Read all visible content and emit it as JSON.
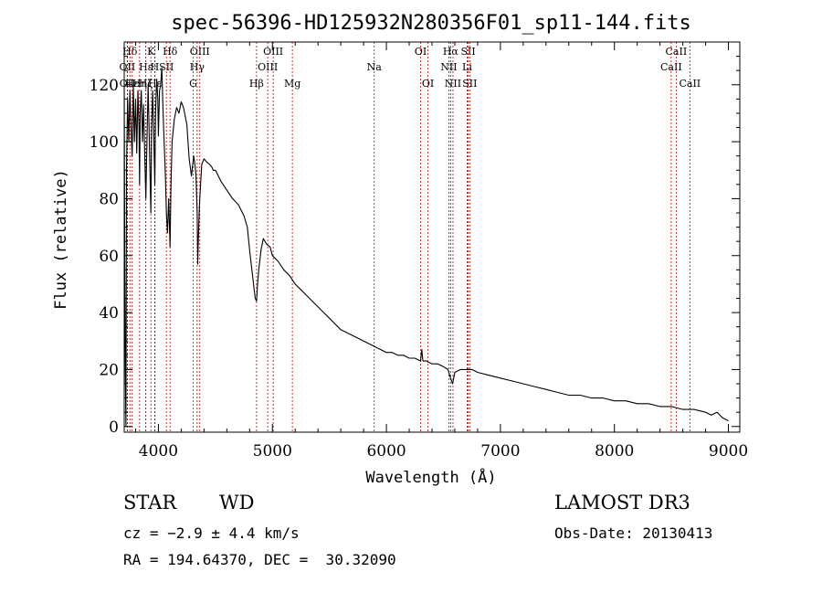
{
  "chart_data": {
    "type": "line",
    "title": "spec-56396-HD125932N280356F01_sp11-144.fits",
    "xlabel": "Wavelength (Å)",
    "ylabel": "Flux (relative)",
    "xlim": [
      3700,
      9100
    ],
    "ylim": [
      -2,
      135
    ],
    "x_ticks": [
      4000,
      5000,
      6000,
      7000,
      8000,
      9000
    ],
    "y_ticks": [
      0,
      20,
      40,
      60,
      80,
      100,
      120
    ],
    "series": [
      {
        "name": "spectrum",
        "x": [
          3700,
          3705,
          3710,
          3715,
          3720,
          3730,
          3740,
          3750,
          3760,
          3770,
          3780,
          3790,
          3800,
          3810,
          3820,
          3830,
          3835,
          3840,
          3850,
          3860,
          3870,
          3880,
          3890,
          3900,
          3910,
          3920,
          3930,
          3934,
          3940,
          3950,
          3960,
          3968,
          3975,
          3985,
          3995,
          4000,
          4010,
          4020,
          4030,
          4040,
          4050,
          4060,
          4070,
          4080,
          4090,
          4102,
          4110,
          4120,
          4140,
          4160,
          4180,
          4200,
          4220,
          4250,
          4270,
          4290,
          4310,
          4320,
          4330,
          4340,
          4345,
          4350,
          4360,
          4370,
          4380,
          4400,
          4420,
          4450,
          4470,
          4480,
          4500,
          4550,
          4600,
          4650,
          4700,
          4750,
          4780,
          4800,
          4820,
          4840,
          4850,
          4861,
          4870,
          4880,
          4900,
          4920,
          4950,
          4980,
          5000,
          5050,
          5100,
          5150,
          5200,
          5250,
          5300,
          5350,
          5400,
          5450,
          5500,
          5550,
          5600,
          5650,
          5700,
          5750,
          5800,
          5850,
          5900,
          5950,
          6000,
          6050,
          6100,
          6150,
          6200,
          6250,
          6300,
          6310,
          6320,
          6350,
          6400,
          6450,
          6500,
          6540,
          6563,
          6580,
          6600,
          6650,
          6700,
          6750,
          6800,
          6900,
          7000,
          7100,
          7200,
          7300,
          7400,
          7500,
          7600,
          7700,
          7800,
          7900,
          8000,
          8100,
          8200,
          8300,
          8400,
          8500,
          8600,
          8700,
          8800,
          8850,
          8900,
          8950,
          9000
        ],
        "values": [
          120,
          55,
          20,
          0,
          90,
          115,
          100,
          118,
          105,
          95,
          120,
          100,
          115,
          96,
          118,
          105,
          85,
          110,
          118,
          100,
          113,
          95,
          80,
          102,
          120,
          100,
          82,
          75,
          105,
          118,
          100,
          85,
          110,
          122,
          115,
          102,
          118,
          120,
          126,
          112,
          100,
          90,
          75,
          68,
          80,
          63,
          85,
          100,
          108,
          112,
          110,
          114,
          112,
          106,
          94,
          88,
          95,
          92,
          88,
          75,
          57,
          65,
          78,
          85,
          92,
          94,
          93,
          92,
          91,
          90,
          90,
          86,
          83,
          80,
          78,
          74,
          70,
          62,
          55,
          48,
          45,
          44,
          50,
          55,
          62,
          66,
          64,
          63,
          60,
          58,
          55,
          53,
          50,
          48,
          46,
          44,
          42,
          40,
          38,
          36,
          34,
          33,
          32,
          31,
          30,
          29,
          28,
          27,
          26,
          26,
          25,
          25,
          24,
          24,
          23,
          27,
          23,
          23,
          22,
          22,
          21,
          20,
          17,
          15,
          19,
          20,
          20,
          20,
          19,
          18,
          17,
          16,
          15,
          14,
          13,
          12,
          11,
          11,
          10,
          10,
          9,
          9,
          8,
          8,
          7,
          7,
          6,
          6,
          5,
          4,
          5,
          3,
          2
        ]
      }
    ],
    "lines": [
      {
        "label": "Hδ",
        "x": 3750,
        "row": 0
      },
      {
        "label": "OII",
        "x": 3727,
        "row": 1
      },
      {
        "label": "OII",
        "x": 3729,
        "row": 2
      },
      {
        "label": "Hε",
        "x": 3770,
        "row": 2
      },
      {
        "label": "K",
        "x": 3934,
        "row": 0
      },
      {
        "label": "H",
        "x": 3968,
        "row": 1
      },
      {
        "label": "Hε",
        "x": 3890,
        "row": 1
      },
      {
        "label": "SII",
        "x": 4070,
        "row": 1
      },
      {
        "label": "Hη",
        "x": 3835,
        "row": 2
      },
      {
        "label": "Hζ",
        "x": 3889,
        "row": 2
      },
      {
        "label": "Hε",
        "x": 3970,
        "row": 2
      },
      {
        "label": "Hδ",
        "x": 4102,
        "row": 0
      },
      {
        "label": "OIII",
        "x": 4363,
        "row": 0
      },
      {
        "label": "Hγ",
        "x": 4340,
        "row": 1
      },
      {
        "label": "G",
        "x": 4305,
        "row": 2
      },
      {
        "label": "OIII",
        "x": 5007,
        "row": 0
      },
      {
        "label": "OIII",
        "x": 4959,
        "row": 1
      },
      {
        "label": "Hβ",
        "x": 4861,
        "row": 2
      },
      {
        "label": "Mg",
        "x": 5175,
        "row": 2
      },
      {
        "label": "Na",
        "x": 5893,
        "row": 1
      },
      {
        "label": "OI",
        "x": 6300,
        "row": 0
      },
      {
        "label": "OI",
        "x": 6364,
        "row": 2
      },
      {
        "label": "Hα",
        "x": 6563,
        "row": 0
      },
      {
        "label": "NII",
        "x": 6548,
        "row": 1
      },
      {
        "label": "NII",
        "x": 6584,
        "row": 2
      },
      {
        "label": "SII",
        "x": 6717,
        "row": 0
      },
      {
        "label": "Li",
        "x": 6708,
        "row": 1
      },
      {
        "label": "SII",
        "x": 6731,
        "row": 2
      },
      {
        "label": "CaII",
        "x": 8542,
        "row": 0
      },
      {
        "label": "CaII",
        "x": 8498,
        "row": 1
      },
      {
        "label": "CaII",
        "x": 8662,
        "row": 2
      }
    ],
    "line_color": "#c00000",
    "grid": false
  },
  "info": {
    "class": "STAR",
    "subclass": "WD",
    "survey": "LAMOST DR3",
    "cz": "cz = −2.9 ± 4.4 km/s",
    "obs_date": "Obs-Date: 20130413",
    "coords": "RA = 194.64370, DEC =  30.32090"
  }
}
